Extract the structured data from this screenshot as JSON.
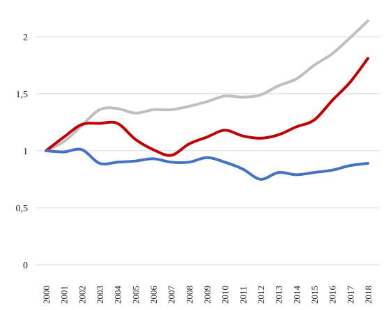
{
  "chart_data": {
    "type": "line",
    "title": "",
    "xlabel": "",
    "ylabel": "",
    "x": [
      "2000",
      "2001",
      "2002",
      "2003",
      "2004",
      "2005",
      "2006",
      "2007",
      "2008",
      "2009",
      "2010",
      "2011",
      "2012",
      "2013",
      "2014",
      "2015",
      "2016",
      "2017",
      "2018"
    ],
    "ylim": [
      0,
      2.2
    ],
    "yticks": [
      {
        "value": 0,
        "label": "0"
      },
      {
        "value": 0.5,
        "label": "0,5"
      },
      {
        "value": 1,
        "label": "1"
      },
      {
        "value": 1.5,
        "label": "1,5"
      },
      {
        "value": 2,
        "label": "2"
      }
    ],
    "grid": true,
    "legend": "none",
    "series": [
      {
        "color": "#bfbfbf",
        "values": [
          1.0,
          1.08,
          1.22,
          1.36,
          1.37,
          1.33,
          1.36,
          1.36,
          1.39,
          1.43,
          1.48,
          1.47,
          1.49,
          1.57,
          1.63,
          1.75,
          1.85,
          1.99,
          2.14
        ]
      },
      {
        "color": "#c00000",
        "values": [
          1.0,
          1.12,
          1.23,
          1.24,
          1.24,
          1.1,
          1.01,
          0.96,
          1.06,
          1.12,
          1.18,
          1.13,
          1.11,
          1.14,
          1.21,
          1.27,
          1.44,
          1.6,
          1.81
        ]
      },
      {
        "color": "#4472c4",
        "values": [
          1.0,
          0.99,
          1.01,
          0.89,
          0.9,
          0.91,
          0.93,
          0.9,
          0.9,
          0.94,
          0.9,
          0.84,
          0.75,
          0.81,
          0.79,
          0.81,
          0.83,
          0.87,
          0.89
        ]
      }
    ]
  }
}
